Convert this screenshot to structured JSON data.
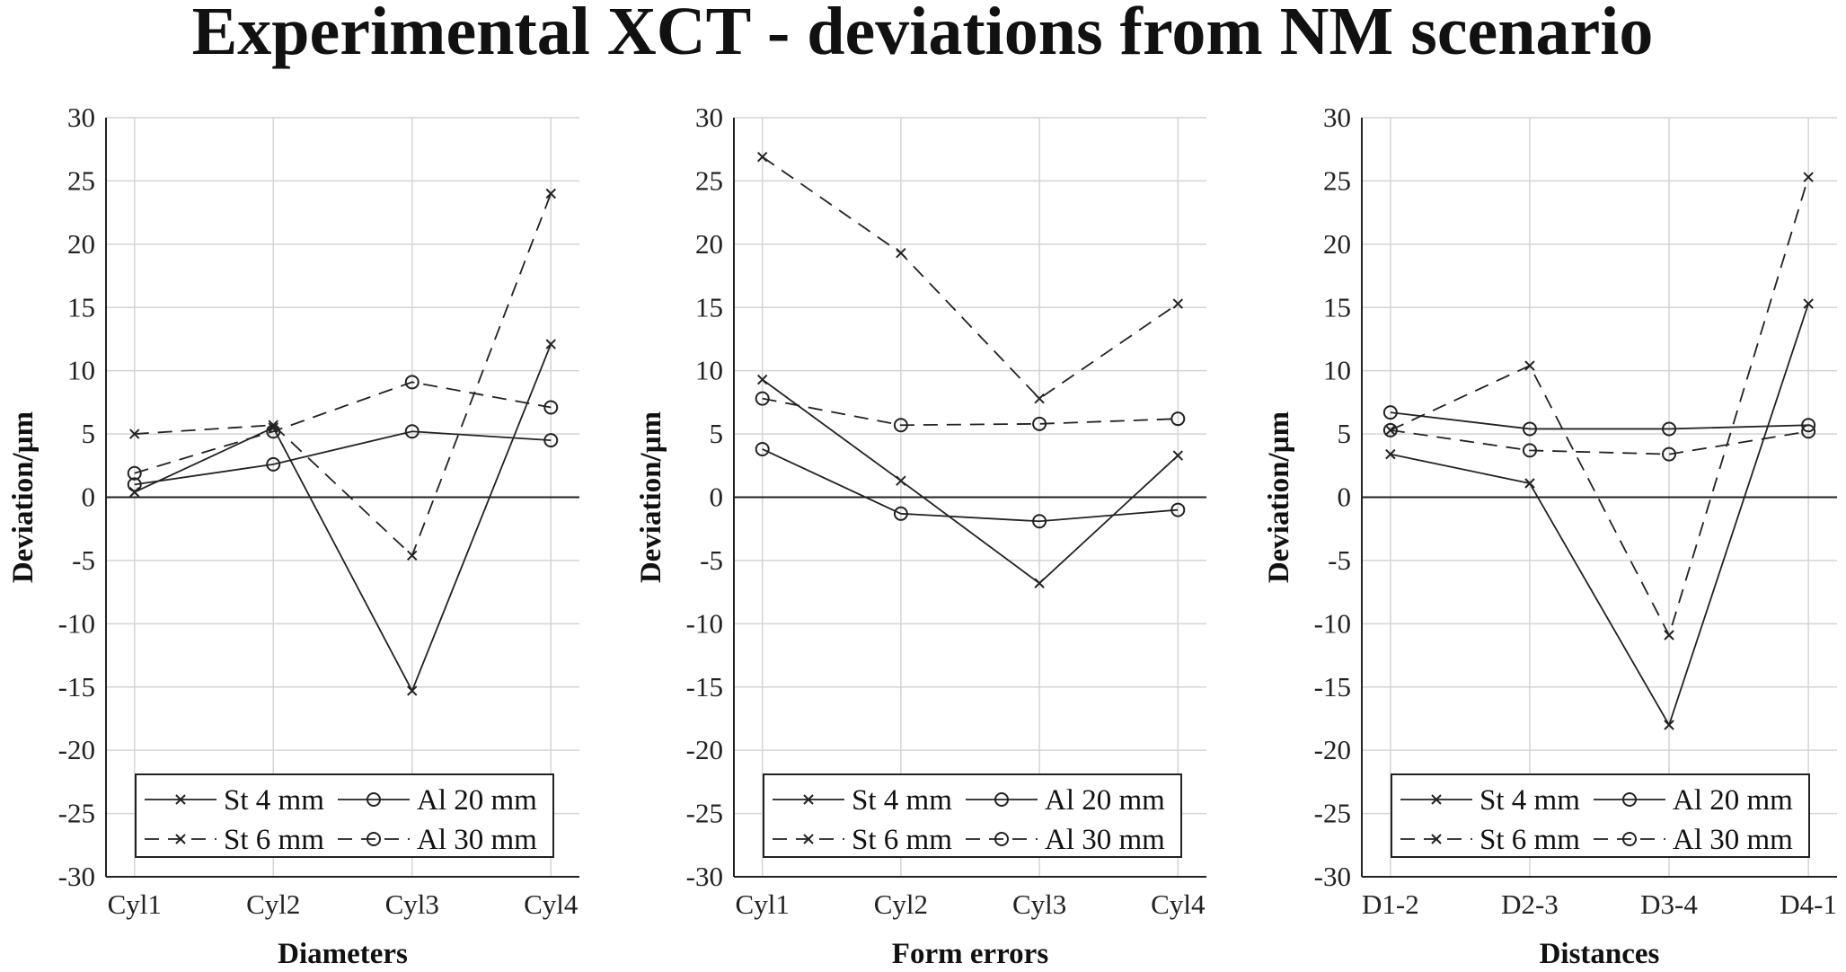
{
  "title": "Experimental XCT - deviations from NM scenario",
  "chart_data": [
    {
      "type": "line",
      "xlabel": "Diameters",
      "ylabel": "Deviation/µm",
      "categories": [
        "Cyl1",
        "Cyl2",
        "Cyl3",
        "Cyl4"
      ],
      "ylim": [
        -30,
        30
      ],
      "yticks": [
        30,
        25,
        20,
        15,
        10,
        5,
        0,
        -5,
        -10,
        -15,
        -20,
        -25,
        -30
      ],
      "grid": true,
      "legend": "bottom",
      "series": [
        {
          "name": "St 4 mm",
          "style": "solid",
          "marker": "x",
          "values": [
            0.4,
            5.5,
            -15.3,
            12.1
          ]
        },
        {
          "name": "Al 20 mm",
          "style": "solid",
          "marker": "o",
          "values": [
            1.0,
            2.6,
            5.2,
            4.5
          ]
        },
        {
          "name": "St 6 mm",
          "style": "dashed",
          "marker": "x",
          "values": [
            5.0,
            5.7,
            -4.6,
            24.0
          ]
        },
        {
          "name": "Al 30 mm",
          "style": "dashed",
          "marker": "o",
          "values": [
            1.9,
            5.2,
            9.1,
            7.1
          ]
        }
      ]
    },
    {
      "type": "line",
      "xlabel": "Form errors",
      "ylabel": "Deviation/µm",
      "categories": [
        "Cyl1",
        "Cyl2",
        "Cyl3",
        "Cyl4"
      ],
      "ylim": [
        -30,
        30
      ],
      "yticks": [
        30,
        25,
        20,
        15,
        10,
        5,
        0,
        -5,
        -10,
        -15,
        -20,
        -25,
        -30
      ],
      "grid": true,
      "legend": "bottom",
      "series": [
        {
          "name": "St 4 mm",
          "style": "solid",
          "marker": "x",
          "values": [
            9.3,
            1.3,
            -6.8,
            3.3
          ]
        },
        {
          "name": "Al 20 mm",
          "style": "solid",
          "marker": "o",
          "values": [
            3.8,
            -1.3,
            -1.9,
            -1.0
          ]
        },
        {
          "name": "St 6 mm",
          "style": "dashed",
          "marker": "x",
          "values": [
            26.9,
            19.3,
            7.8,
            15.3
          ]
        },
        {
          "name": "Al 30 mm",
          "style": "dashed",
          "marker": "o",
          "values": [
            7.8,
            5.7,
            5.8,
            6.2
          ]
        }
      ]
    },
    {
      "type": "line",
      "xlabel": "Distances",
      "ylabel": "Deviation/µm",
      "categories": [
        "D1-2",
        "D2-3",
        "D3-4",
        "D4-1"
      ],
      "ylim": [
        -30,
        30
      ],
      "yticks": [
        30,
        25,
        20,
        15,
        10,
        5,
        0,
        -5,
        -10,
        -15,
        -20,
        -25,
        -30
      ],
      "grid": true,
      "legend": "bottom",
      "series": [
        {
          "name": "St 4 mm",
          "style": "solid",
          "marker": "x",
          "values": [
            3.4,
            1.1,
            -18.0,
            15.3
          ]
        },
        {
          "name": "Al 20 mm",
          "style": "solid",
          "marker": "o",
          "values": [
            6.7,
            5.4,
            5.4,
            5.7
          ]
        },
        {
          "name": "St 6 mm",
          "style": "dashed",
          "marker": "x",
          "values": [
            5.3,
            10.4,
            -10.9,
            25.3
          ]
        },
        {
          "name": "Al 30 mm",
          "style": "dashed",
          "marker": "o",
          "values": [
            5.3,
            3.7,
            3.4,
            5.2
          ]
        }
      ]
    }
  ]
}
